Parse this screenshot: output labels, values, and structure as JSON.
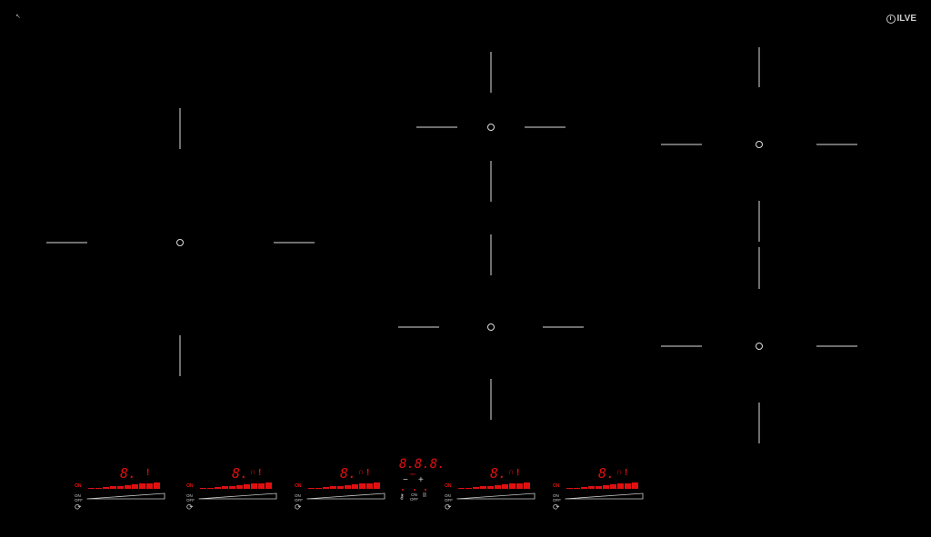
{
  "brand": {
    "name": "ILVE"
  },
  "colors": {
    "accent": "#e01010",
    "lines": "#dddddd",
    "background": "#000000"
  },
  "zones": [
    {
      "digit": "8.",
      "boost": false
    },
    {
      "digit": "8.",
      "boost": true
    },
    {
      "digit": "8.",
      "boost": true
    },
    {
      "digit": "8.",
      "boost": true
    },
    {
      "digit": "8.",
      "boost": true
    }
  ],
  "labels": {
    "on": "ON",
    "on2": "ON",
    "off": "OFF",
    "boost_icon": "∩",
    "heat_icon": "ǃ",
    "rotate_icon": "⟳"
  },
  "timer": {
    "display": "8.8.8.",
    "unit": "min",
    "minus": "−",
    "plus": "+",
    "lock_icon": "🔑",
    "on": "ON",
    "off": "OFF",
    "pause": "II"
  }
}
